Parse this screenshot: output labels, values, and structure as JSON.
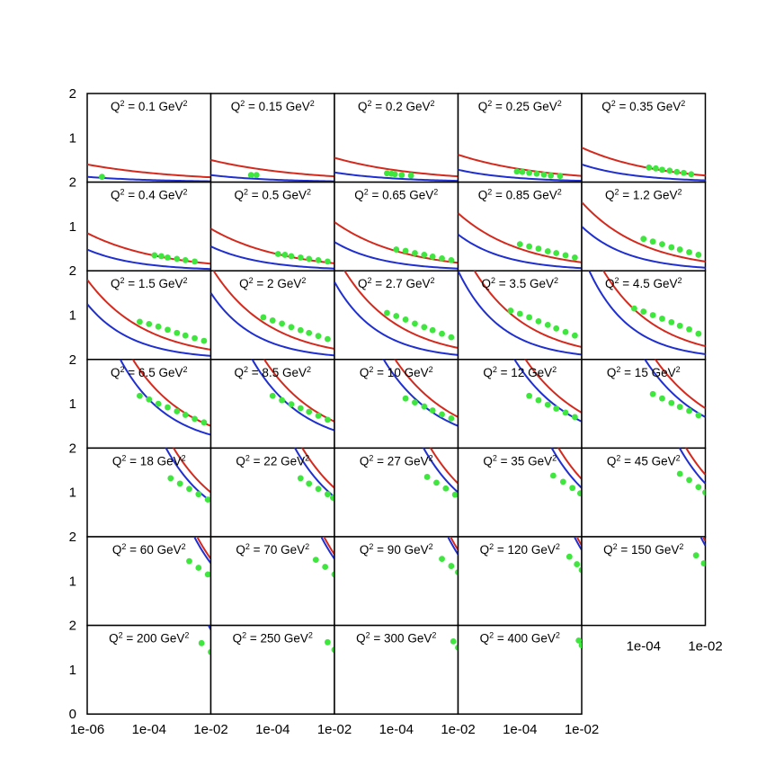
{
  "chart_data": {
    "type": "line",
    "grid": false,
    "xscale": "log",
    "xlim": [
      1e-06,
      0.01
    ],
    "ylim": [
      0,
      2
    ],
    "xtick_labels": [
      "1e-06",
      "1e-04",
      "1e-02"
    ],
    "ytick_labels": [
      "0",
      "1",
      "2"
    ],
    "series_colors": {
      "model_a": "#d42a1e",
      "model_b": "#1f2fd0",
      "data": "#3ee63e"
    },
    "panels": [
      {
        "label": "0.1",
        "a": [
          0.4,
          0.11
        ],
        "b": [
          0.12,
          0.02
        ],
        "d": [
          [
            3e-06,
            0.12
          ]
        ]
      },
      {
        "label": "0.15",
        "a": [
          0.5,
          0.13
        ],
        "b": [
          0.16,
          0.02
        ],
        "d": [
          [
            2e-05,
            0.16
          ],
          [
            3e-05,
            0.16
          ]
        ]
      },
      {
        "label": "0.2",
        "a": [
          0.55,
          0.13
        ],
        "b": [
          0.22,
          0.03
        ],
        "d": [
          [
            5e-05,
            0.2
          ],
          [
            7e-05,
            0.19
          ],
          [
            9e-05,
            0.18
          ],
          [
            0.00015,
            0.16
          ],
          [
            0.0003,
            0.15
          ]
        ]
      },
      {
        "label": "0.25",
        "a": [
          0.62,
          0.14
        ],
        "b": [
          0.28,
          0.03
        ],
        "d": [
          [
            8e-05,
            0.24
          ],
          [
            0.00012,
            0.23
          ],
          [
            0.0002,
            0.21
          ],
          [
            0.00035,
            0.19
          ],
          [
            0.0006,
            0.17
          ],
          [
            0.001,
            0.15
          ],
          [
            0.002,
            0.14
          ]
        ]
      },
      {
        "label": "0.35",
        "a": [
          0.78,
          0.15
        ],
        "b": [
          0.4,
          0.04
        ],
        "d": [
          [
            0.00015,
            0.33
          ],
          [
            0.00025,
            0.31
          ],
          [
            0.0004,
            0.28
          ],
          [
            0.0007,
            0.26
          ],
          [
            0.0012,
            0.23
          ],
          [
            0.002,
            0.21
          ],
          [
            0.0035,
            0.18
          ]
        ]
      },
      {
        "label": "0.4",
        "a": [
          0.85,
          0.16
        ],
        "b": [
          0.48,
          0.04
        ],
        "d": [
          [
            0.00015,
            0.35
          ],
          [
            0.00025,
            0.33
          ],
          [
            0.0004,
            0.3
          ],
          [
            0.0008,
            0.27
          ],
          [
            0.0015,
            0.24
          ],
          [
            0.003,
            0.21
          ]
        ]
      },
      {
        "label": "0.5",
        "a": [
          0.95,
          0.17
        ],
        "b": [
          0.55,
          0.05
        ],
        "d": [
          [
            0.00015,
            0.38
          ],
          [
            0.00025,
            0.36
          ],
          [
            0.0004,
            0.33
          ],
          [
            0.0008,
            0.3
          ],
          [
            0.0015,
            0.27
          ],
          [
            0.003,
            0.24
          ],
          [
            0.006,
            0.21
          ]
        ]
      },
      {
        "label": "0.65",
        "a": [
          1.1,
          0.18
        ],
        "b": [
          0.65,
          0.05
        ],
        "d": [
          [
            0.0001,
            0.48
          ],
          [
            0.0002,
            0.45
          ],
          [
            0.0004,
            0.4
          ],
          [
            0.0008,
            0.36
          ],
          [
            0.0015,
            0.32
          ],
          [
            0.003,
            0.28
          ],
          [
            0.006,
            0.24
          ]
        ]
      },
      {
        "label": "0.85",
        "a": [
          1.3,
          0.19
        ],
        "b": [
          0.82,
          0.06
        ],
        "d": [
          [
            0.0001,
            0.6
          ],
          [
            0.0002,
            0.55
          ],
          [
            0.0004,
            0.5
          ],
          [
            0.0008,
            0.44
          ],
          [
            0.0015,
            0.4
          ],
          [
            0.003,
            0.35
          ],
          [
            0.006,
            0.3
          ]
        ]
      },
      {
        "label": "1.2",
        "a": [
          1.55,
          0.21
        ],
        "b": [
          1.0,
          0.07
        ],
        "d": [
          [
            0.0001,
            0.72
          ],
          [
            0.0002,
            0.66
          ],
          [
            0.0004,
            0.6
          ],
          [
            0.0008,
            0.53
          ],
          [
            0.0015,
            0.48
          ],
          [
            0.003,
            0.42
          ],
          [
            0.006,
            0.36
          ]
        ]
      },
      {
        "label": "1.5",
        "a": [
          1.8,
          0.22
        ],
        "b": [
          1.25,
          0.08
        ],
        "d": [
          [
            5e-05,
            0.85
          ],
          [
            0.0001,
            0.8
          ],
          [
            0.0002,
            0.74
          ],
          [
            0.0004,
            0.67
          ],
          [
            0.0008,
            0.6
          ],
          [
            0.0015,
            0.54
          ],
          [
            0.003,
            0.48
          ],
          [
            0.006,
            0.42
          ]
        ]
      },
      {
        "label": "2",
        "a": [
          2.1,
          0.24
        ],
        "b": [
          1.5,
          0.09
        ],
        "d": [
          [
            5e-05,
            0.95
          ],
          [
            0.0001,
            0.88
          ],
          [
            0.0002,
            0.81
          ],
          [
            0.0004,
            0.73
          ],
          [
            0.0008,
            0.66
          ],
          [
            0.0015,
            0.6
          ],
          [
            0.003,
            0.53
          ],
          [
            0.006,
            0.46
          ]
        ]
      },
      {
        "label": "2.7",
        "a": [
          2.4,
          0.26
        ],
        "b": [
          1.75,
          0.1
        ],
        "d": [
          [
            5e-05,
            1.05
          ],
          [
            0.0001,
            0.98
          ],
          [
            0.0002,
            0.9
          ],
          [
            0.0004,
            0.81
          ],
          [
            0.0008,
            0.73
          ],
          [
            0.0015,
            0.66
          ],
          [
            0.003,
            0.58
          ],
          [
            0.006,
            0.5
          ]
        ]
      },
      {
        "label": "3.5",
        "a": [
          2.7,
          0.28
        ],
        "b": [
          2.0,
          0.11
        ],
        "d": [
          [
            5e-05,
            1.1
          ],
          [
            0.0001,
            1.03
          ],
          [
            0.0002,
            0.95
          ],
          [
            0.0004,
            0.86
          ],
          [
            0.0008,
            0.78
          ],
          [
            0.0015,
            0.7
          ],
          [
            0.003,
            0.62
          ],
          [
            0.006,
            0.54
          ]
        ]
      },
      {
        "label": "4.5",
        "a": [
          3.0,
          0.3
        ],
        "b": [
          2.4,
          0.12
        ],
        "d": [
          [
            5e-05,
            1.15
          ],
          [
            0.0001,
            1.08
          ],
          [
            0.0002,
            1.0
          ],
          [
            0.0004,
            0.92
          ],
          [
            0.0008,
            0.84
          ],
          [
            0.0015,
            0.76
          ],
          [
            0.003,
            0.68
          ],
          [
            0.006,
            0.58
          ]
        ]
      },
      {
        "label": "6.5",
        "a": [
          4.5,
          0.5
        ],
        "b": [
          4.0,
          0.3
        ],
        "d": [
          [
            5e-05,
            1.18
          ],
          [
            0.0001,
            1.1
          ],
          [
            0.0002,
            1.0
          ],
          [
            0.0004,
            0.92
          ],
          [
            0.0008,
            0.83
          ],
          [
            0.0015,
            0.75
          ],
          [
            0.003,
            0.66
          ],
          [
            0.006,
            0.58
          ]
        ]
      },
      {
        "label": "8.5",
        "a": [
          5.0,
          0.6
        ],
        "b": [
          4.5,
          0.4
        ],
        "d": [
          [
            0.0001,
            1.18
          ],
          [
            0.0002,
            1.08
          ],
          [
            0.0004,
            0.99
          ],
          [
            0.0008,
            0.9
          ],
          [
            0.0015,
            0.82
          ],
          [
            0.003,
            0.73
          ],
          [
            0.006,
            0.64
          ]
        ]
      },
      {
        "label": "10",
        "a": [
          5.5,
          0.7
        ],
        "b": [
          5.0,
          0.5
        ],
        "d": [
          [
            0.0002,
            1.12
          ],
          [
            0.0004,
            1.03
          ],
          [
            0.0008,
            0.94
          ],
          [
            0.0015,
            0.85
          ],
          [
            0.003,
            0.76
          ],
          [
            0.006,
            0.67
          ]
        ]
      },
      {
        "label": "12",
        "a": [
          6.0,
          0.8
        ],
        "b": [
          5.5,
          0.6
        ],
        "d": [
          [
            0.0002,
            1.18
          ],
          [
            0.0004,
            1.08
          ],
          [
            0.0008,
            0.98
          ],
          [
            0.0015,
            0.89
          ],
          [
            0.003,
            0.8
          ],
          [
            0.006,
            0.7
          ]
        ]
      },
      {
        "label": "15",
        "a": [
          6.5,
          0.9
        ],
        "b": [
          6.0,
          0.7
        ],
        "d": [
          [
            0.0002,
            1.22
          ],
          [
            0.0004,
            1.12
          ],
          [
            0.0008,
            1.02
          ],
          [
            0.0015,
            0.93
          ],
          [
            0.003,
            0.84
          ],
          [
            0.006,
            0.74
          ]
        ]
      },
      {
        "label": "18",
        "a": [
          10.0,
          1.0
        ],
        "b": [
          10.0,
          0.8
        ],
        "d": [
          [
            0.0005,
            1.32
          ],
          [
            0.001,
            1.2
          ],
          [
            0.002,
            1.08
          ],
          [
            0.004,
            0.96
          ],
          [
            0.008,
            0.84
          ]
        ]
      },
      {
        "label": "22",
        "a": [
          11.0,
          1.1
        ],
        "b": [
          11.0,
          0.9
        ],
        "d": [
          [
            0.0008,
            1.32
          ],
          [
            0.0015,
            1.2
          ],
          [
            0.003,
            1.08
          ],
          [
            0.006,
            0.96
          ],
          [
            0.009,
            0.88
          ]
        ]
      },
      {
        "label": "27",
        "a": [
          12.0,
          1.2
        ],
        "b": [
          12.0,
          1.0
        ],
        "d": [
          [
            0.001,
            1.35
          ],
          [
            0.002,
            1.22
          ],
          [
            0.004,
            1.09
          ],
          [
            0.008,
            0.95
          ]
        ]
      },
      {
        "label": "35",
        "a": [
          13.0,
          1.3
        ],
        "b": [
          13.0,
          1.1
        ],
        "d": [
          [
            0.0012,
            1.38
          ],
          [
            0.0025,
            1.24
          ],
          [
            0.005,
            1.1
          ],
          [
            0.009,
            0.98
          ]
        ]
      },
      {
        "label": "45",
        "a": [
          14.0,
          1.4
        ],
        "b": [
          14.0,
          1.2
        ],
        "d": [
          [
            0.0015,
            1.42
          ],
          [
            0.003,
            1.28
          ],
          [
            0.006,
            1.12
          ],
          [
            0.01,
            1.0
          ]
        ]
      },
      {
        "label": "60",
        "a": [
          20.0,
          1.5
        ],
        "b": [
          20.0,
          1.4
        ],
        "d": [
          [
            0.002,
            1.45
          ],
          [
            0.004,
            1.3
          ],
          [
            0.008,
            1.15
          ]
        ]
      },
      {
        "label": "70",
        "a": [
          22.0,
          1.6
        ],
        "b": [
          22.0,
          1.5
        ],
        "d": [
          [
            0.0025,
            1.48
          ],
          [
            0.005,
            1.32
          ],
          [
            0.01,
            1.15
          ]
        ]
      },
      {
        "label": "90",
        "a": [
          24.0,
          1.7
        ],
        "b": [
          24.0,
          1.6
        ],
        "d": [
          [
            0.003,
            1.5
          ],
          [
            0.006,
            1.34
          ],
          [
            0.01,
            1.2
          ]
        ]
      },
      {
        "label": "120",
        "a": [
          26.0,
          1.8
        ],
        "b": [
          26.0,
          1.7
        ],
        "d": [
          [
            0.004,
            1.55
          ],
          [
            0.007,
            1.38
          ],
          [
            0.01,
            1.25
          ]
        ]
      },
      {
        "label": "150",
        "a": [
          28.0,
          1.9
        ],
        "b": [
          28.0,
          1.8
        ],
        "d": [
          [
            0.005,
            1.58
          ],
          [
            0.009,
            1.4
          ]
        ]
      },
      {
        "label": "200",
        "a": [
          30.0,
          2.0
        ],
        "b": [
          30.0,
          1.9
        ],
        "d": [
          [
            0.005,
            1.6
          ],
          [
            0.01,
            1.4
          ]
        ]
      },
      {
        "label": "250",
        "a": [
          32.0,
          2.1
        ],
        "b": [
          32.0,
          2.0
        ],
        "d": [
          [
            0.006,
            1.62
          ],
          [
            0.01,
            1.45
          ]
        ]
      },
      {
        "label": "300",
        "a": [
          34.0,
          2.2
        ],
        "b": [
          34.0,
          2.1
        ],
        "d": [
          [
            0.007,
            1.64
          ],
          [
            0.01,
            1.5
          ]
        ]
      },
      {
        "label": "400",
        "a": [
          36.0,
          2.3
        ],
        "b": [
          36.0,
          2.2
        ],
        "d": [
          [
            0.008,
            1.66
          ],
          [
            0.01,
            1.55
          ]
        ]
      }
    ],
    "panel_label_parts": {
      "prefix": "Q",
      "power": "2",
      "middle": " = ",
      "unit": " GeV",
      "unit_power": "2"
    }
  }
}
